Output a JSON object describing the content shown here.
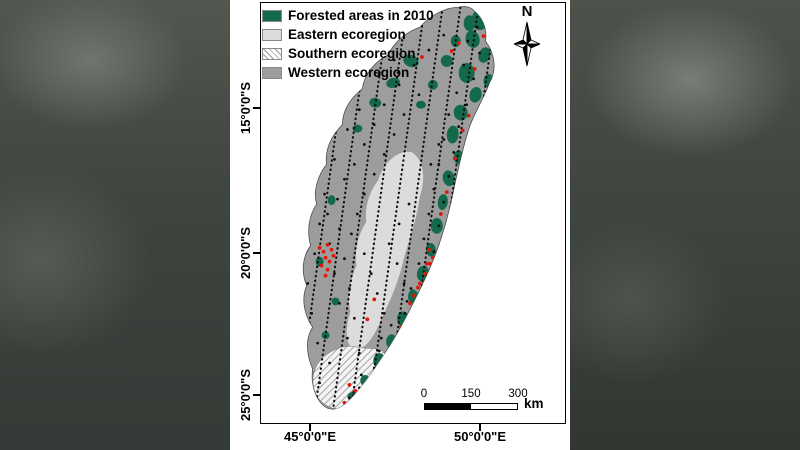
{
  "legend": {
    "items": [
      {
        "label": "Forested areas in 2010",
        "swatch": "forest"
      },
      {
        "label": "Eastern ecoregion",
        "swatch": "eastern"
      },
      {
        "label": "Southern ecoregion",
        "swatch": "southern"
      },
      {
        "label": "Western ecoregion",
        "swatch": "western"
      }
    ]
  },
  "compass": {
    "label": "N"
  },
  "axis": {
    "lat": [
      "15°0'0\"S",
      "20°0'0\"S",
      "25°0'0\"S"
    ],
    "lon": [
      "45°0'0\"E",
      "50°0'0\"E"
    ]
  },
  "scalebar": {
    "labels": [
      "0",
      "150",
      "300"
    ],
    "unit": "km"
  },
  "colors": {
    "forest": "#15694b",
    "eastern": "#dcdcdc",
    "western": "#9d9d9d",
    "red": "#e01709"
  },
  "map_points": {
    "forest_patches": [
      [
        221,
        16,
        9,
        11,
        10
      ],
      [
        213,
        36,
        7,
        9,
        -15
      ],
      [
        225,
        52,
        6,
        8,
        20
      ],
      [
        207,
        70,
        8,
        10,
        0
      ],
      [
        216,
        92,
        6,
        8,
        15
      ],
      [
        201,
        110,
        7,
        8,
        -10
      ],
      [
        193,
        132,
        6,
        9,
        5
      ],
      [
        199,
        155,
        5,
        7,
        0
      ],
      [
        189,
        176,
        6,
        8,
        -12
      ],
      [
        183,
        200,
        5,
        8,
        8
      ],
      [
        177,
        224,
        6,
        8,
        0
      ],
      [
        171,
        248,
        5,
        7,
        -8
      ],
      [
        163,
        272,
        6,
        8,
        10
      ],
      [
        153,
        295,
        5,
        7,
        0
      ],
      [
        143,
        318,
        6,
        8,
        -10
      ],
      [
        131,
        340,
        5,
        7,
        8
      ],
      [
        119,
        360,
        6,
        8,
        0
      ],
      [
        105,
        380,
        5,
        6,
        -12
      ],
      [
        93,
        396,
        6,
        5,
        0
      ],
      [
        151,
        58,
        8,
        6,
        20
      ],
      [
        133,
        80,
        7,
        5,
        -15
      ],
      [
        115,
        100,
        6,
        5,
        10
      ],
      [
        97,
        126,
        5,
        4,
        0
      ],
      [
        71,
        198,
        4,
        5,
        0
      ],
      [
        59,
        260,
        4,
        5,
        0
      ],
      [
        75,
        300,
        4,
        4,
        0
      ],
      [
        65,
        334,
        4,
        4,
        0
      ],
      [
        187,
        58,
        6,
        6,
        0
      ],
      [
        173,
        82,
        5,
        5,
        0
      ],
      [
        161,
        102,
        5,
        4,
        0
      ],
      [
        229,
        78,
        5,
        7,
        0
      ],
      [
        210,
        20,
        6,
        8,
        0
      ],
      [
        196,
        38,
        5,
        6,
        0
      ]
    ],
    "black": [
      [
        218,
        24
      ],
      [
        208,
        38
      ],
      [
        220,
        50
      ],
      [
        204,
        62
      ],
      [
        214,
        76
      ],
      [
        197,
        90
      ],
      [
        207,
        102
      ],
      [
        189,
        112
      ],
      [
        199,
        124
      ],
      [
        184,
        137
      ],
      [
        194,
        150
      ],
      [
        179,
        162
      ],
      [
        189,
        174
      ],
      [
        174,
        187
      ],
      [
        184,
        200
      ],
      [
        169,
        212
      ],
      [
        179,
        224
      ],
      [
        164,
        237
      ],
      [
        174,
        250
      ],
      [
        159,
        262
      ],
      [
        167,
        274
      ],
      [
        151,
        287
      ],
      [
        147,
        300
      ],
      [
        145,
        312
      ],
      [
        131,
        324
      ],
      [
        121,
        337
      ],
      [
        119,
        350
      ],
      [
        131,
        362
      ],
      [
        101,
        374
      ],
      [
        99,
        387
      ],
      [
        89,
        397
      ],
      [
        104,
        402
      ],
      [
        94,
        394
      ],
      [
        114,
        367
      ],
      [
        99,
        352
      ],
      [
        87,
        337
      ],
      [
        94,
        317
      ],
      [
        79,
        302
      ],
      [
        89,
        287
      ],
      [
        74,
        272
      ],
      [
        84,
        257
      ],
      [
        69,
        242
      ],
      [
        79,
        227
      ],
      [
        67,
        212
      ],
      [
        77,
        197
      ],
      [
        84,
        177
      ],
      [
        94,
        162
      ],
      [
        104,
        142
      ],
      [
        114,
        122
      ],
      [
        124,
        102
      ],
      [
        139,
        82
      ],
      [
        154,
        62
      ],
      [
        169,
        47
      ],
      [
        184,
        32
      ],
      [
        159,
        92
      ],
      [
        144,
        112
      ],
      [
        134,
        132
      ],
      [
        124,
        152
      ],
      [
        114,
        172
      ],
      [
        104,
        192
      ],
      [
        97,
        212
      ],
      [
        91,
        232
      ],
      [
        104,
        252
      ],
      [
        111,
        272
      ],
      [
        117,
        292
      ],
      [
        124,
        312
      ],
      [
        59,
        382
      ],
      [
        69,
        362
      ],
      [
        57,
        342
      ],
      [
        51,
        312
      ],
      [
        47,
        282
      ],
      [
        54,
        252
      ],
      [
        59,
        222
      ],
      [
        64,
        192
      ],
      [
        74,
        157
      ],
      [
        87,
        127
      ],
      [
        99,
        107
      ],
      [
        119,
        72
      ],
      [
        134,
        57
      ],
      [
        179,
        142
      ],
      [
        171,
        162
      ],
      [
        149,
        202
      ],
      [
        139,
        222
      ],
      [
        129,
        242
      ],
      [
        137,
        262
      ],
      [
        144,
        282
      ]
    ],
    "red": [
      [
        67,
        243
      ],
      [
        63,
        250
      ],
      [
        71,
        248
      ],
      [
        65,
        256
      ],
      [
        69,
        260
      ],
      [
        61,
        264
      ],
      [
        67,
        268
      ],
      [
        73,
        254
      ],
      [
        59,
        246
      ],
      [
        65,
        274
      ],
      [
        162,
        54
      ],
      [
        192,
        48
      ],
      [
        199,
        40
      ],
      [
        169,
        248
      ],
      [
        173,
        256
      ],
      [
        167,
        262
      ],
      [
        170,
        262
      ],
      [
        165,
        272
      ],
      [
        165,
        280
      ],
      [
        158,
        286
      ],
      [
        154,
        294
      ],
      [
        150,
        302
      ],
      [
        160,
        282
      ],
      [
        95,
        390
      ],
      [
        101,
        396
      ],
      [
        89,
        384
      ],
      [
        105,
        388
      ],
      [
        84,
        402
      ],
      [
        209,
        113
      ],
      [
        203,
        128
      ],
      [
        195,
        156
      ],
      [
        187,
        190
      ],
      [
        181,
        212
      ],
      [
        149,
        313
      ],
      [
        141,
        326
      ],
      [
        114,
        298
      ],
      [
        107,
        318
      ],
      [
        224,
        33
      ],
      [
        215,
        66
      ],
      [
        157,
        300
      ]
    ],
    "transect_top_x": [
      58,
      76,
      94,
      112,
      130,
      148,
      166,
      184,
      202,
      220,
      238
    ],
    "transect_dx": -60
  }
}
